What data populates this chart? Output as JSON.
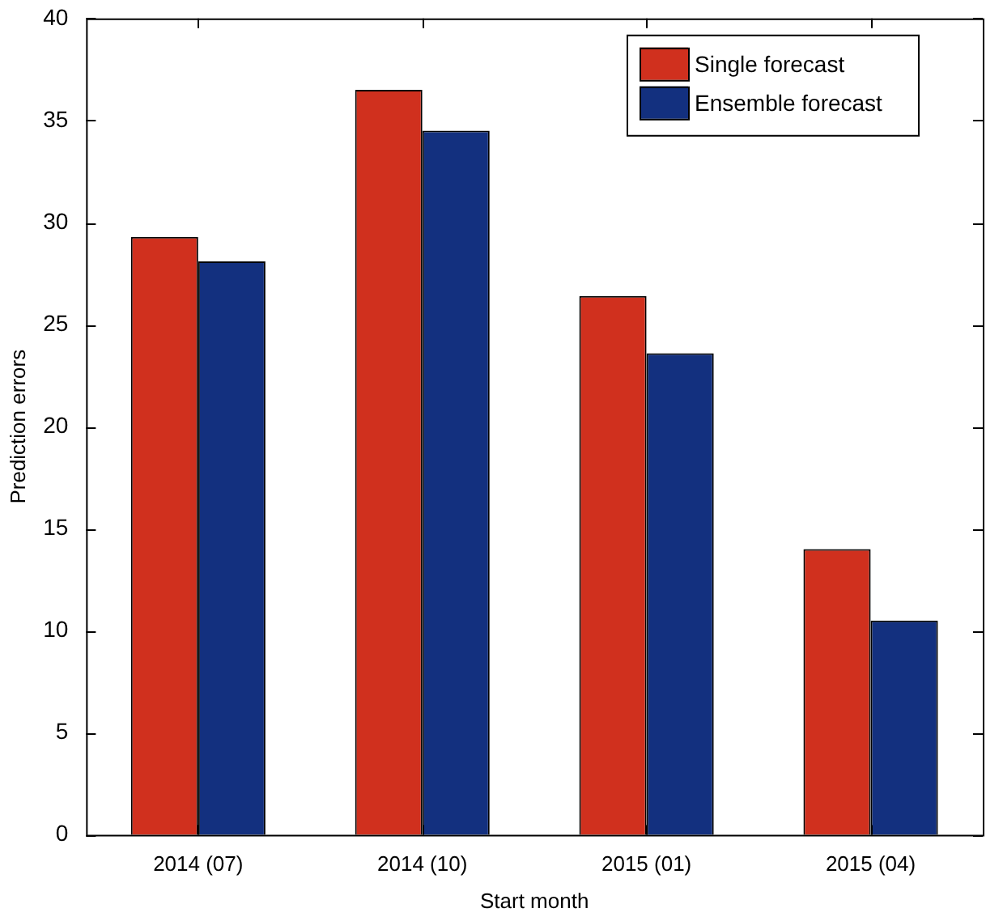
{
  "chart_data": {
    "type": "bar",
    "xlabel": "Start month",
    "ylabel": "Prediction errors",
    "categories": [
      "2014 (07)",
      "2014 (10)",
      "2015 (01)",
      "2015 (04)"
    ],
    "series": [
      {
        "name": "Single forecast",
        "color": "#d0301e",
        "values": [
          29.3,
          36.5,
          26.4,
          14.0
        ]
      },
      {
        "name": "Ensemble forecast",
        "color": "#13307f",
        "values": [
          28.1,
          34.5,
          23.6,
          10.5
        ]
      }
    ],
    "ylim": [
      0,
      40
    ],
    "yticks": [
      0,
      5,
      10,
      15,
      20,
      25,
      30,
      35,
      40
    ],
    "grid": false,
    "legend": "top right"
  }
}
